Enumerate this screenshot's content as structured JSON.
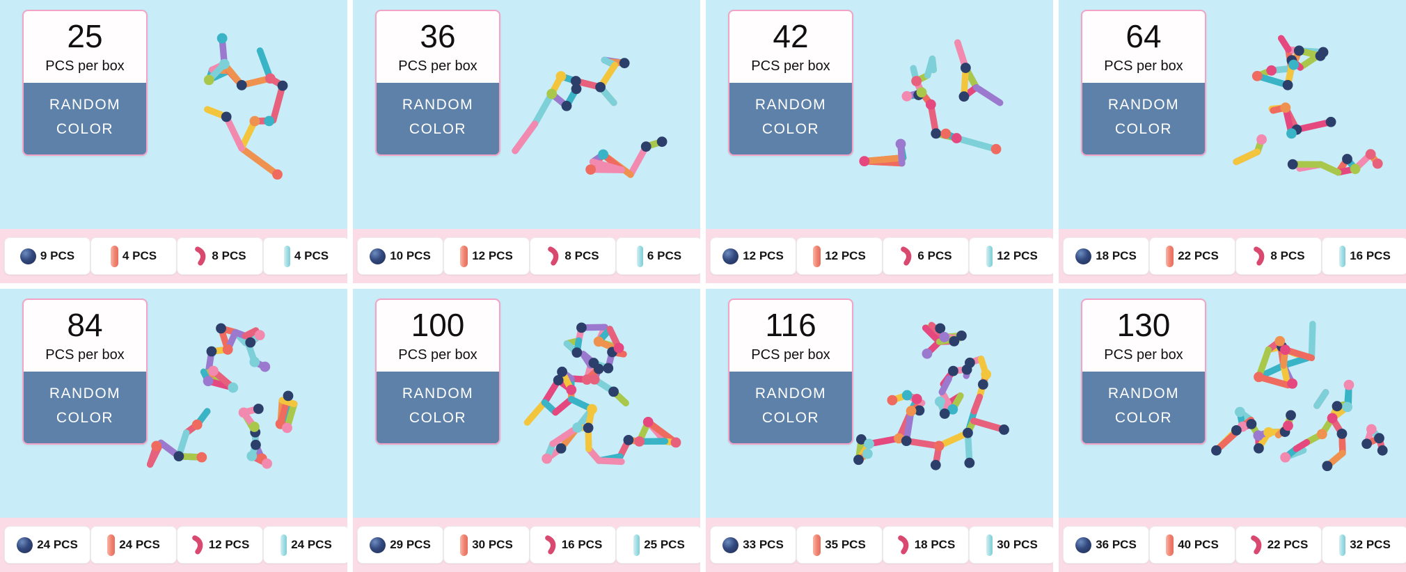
{
  "colors": {
    "panel_bg": "#c9edf8",
    "strip_bg": "#fbdce6",
    "badge_bg": "#5e81a9",
    "card_border": "#f2a3c6",
    "ball_color": "#2c3f6b",
    "coral_stick_color": "#ef8270",
    "curved_stick_color": "#d9486f",
    "cyan_stick_color": "#9adbe2"
  },
  "panels": [
    {
      "count": "25",
      "unit": "PCS per box",
      "badge_line1": "RANDOM",
      "badge_line2": "COLOR",
      "components": [
        {
          "icon": "ball",
          "label": "9 PCS"
        },
        {
          "icon": "coral-stick",
          "label": "4 PCS"
        },
        {
          "icon": "curved-stick",
          "label": "8 PCS"
        },
        {
          "icon": "cyan-stick",
          "label": "4 PCS"
        }
      ]
    },
    {
      "count": "36",
      "unit": "PCS per box",
      "badge_line1": "RANDOM",
      "badge_line2": "COLOR",
      "components": [
        {
          "icon": "ball",
          "label": "10 PCS"
        },
        {
          "icon": "coral-stick",
          "label": "12 PCS"
        },
        {
          "icon": "curved-stick",
          "label": "8 PCS"
        },
        {
          "icon": "cyan-stick",
          "label": "6 PCS"
        }
      ]
    },
    {
      "count": "42",
      "unit": "PCS per box",
      "badge_line1": "RANDOM",
      "badge_line2": "COLOR",
      "components": [
        {
          "icon": "ball",
          "label": "12 PCS"
        },
        {
          "icon": "coral-stick",
          "label": "12 PCS"
        },
        {
          "icon": "curved-stick",
          "label": "6 PCS"
        },
        {
          "icon": "cyan-stick",
          "label": "12 PCS"
        }
      ]
    },
    {
      "count": "64",
      "unit": "PCS per box",
      "badge_line1": "RANDOM",
      "badge_line2": "COLOR",
      "components": [
        {
          "icon": "ball",
          "label": "18 PCS"
        },
        {
          "icon": "coral-stick",
          "label": "22 PCS"
        },
        {
          "icon": "curved-stick",
          "label": "8 PCS"
        },
        {
          "icon": "cyan-stick",
          "label": "16 PCS"
        }
      ]
    },
    {
      "count": "84",
      "unit": "PCS per box",
      "badge_line1": "RANDOM",
      "badge_line2": "COLOR",
      "components": [
        {
          "icon": "ball",
          "label": "24 PCS"
        },
        {
          "icon": "coral-stick",
          "label": "24 PCS"
        },
        {
          "icon": "curved-stick",
          "label": "12 PCS"
        },
        {
          "icon": "cyan-stick",
          "label": "24 PCS"
        }
      ]
    },
    {
      "count": "100",
      "unit": "PCS per box",
      "badge_line1": "RANDOM",
      "badge_line2": "COLOR",
      "components": [
        {
          "icon": "ball",
          "label": "29 PCS"
        },
        {
          "icon": "coral-stick",
          "label": "30 PCS"
        },
        {
          "icon": "curved-stick",
          "label": "16 PCS"
        },
        {
          "icon": "cyan-stick",
          "label": "25 PCS"
        }
      ]
    },
    {
      "count": "116",
      "unit": "PCS per box",
      "badge_line1": "RANDOM",
      "badge_line2": "COLOR",
      "components": [
        {
          "icon": "ball",
          "label": "33 PCS"
        },
        {
          "icon": "coral-stick",
          "label": "35 PCS"
        },
        {
          "icon": "curved-stick",
          "label": "18 PCS"
        },
        {
          "icon": "cyan-stick",
          "label": "30 PCS"
        }
      ]
    },
    {
      "count": "130",
      "unit": "PCS per box",
      "badge_line1": "RANDOM",
      "badge_line2": "COLOR",
      "components": [
        {
          "icon": "ball",
          "label": "36 PCS"
        },
        {
          "icon": "coral-stick",
          "label": "40 PCS"
        },
        {
          "icon": "curved-stick",
          "label": "22 PCS"
        },
        {
          "icon": "cyan-stick",
          "label": "32 PCS"
        }
      ]
    }
  ]
}
